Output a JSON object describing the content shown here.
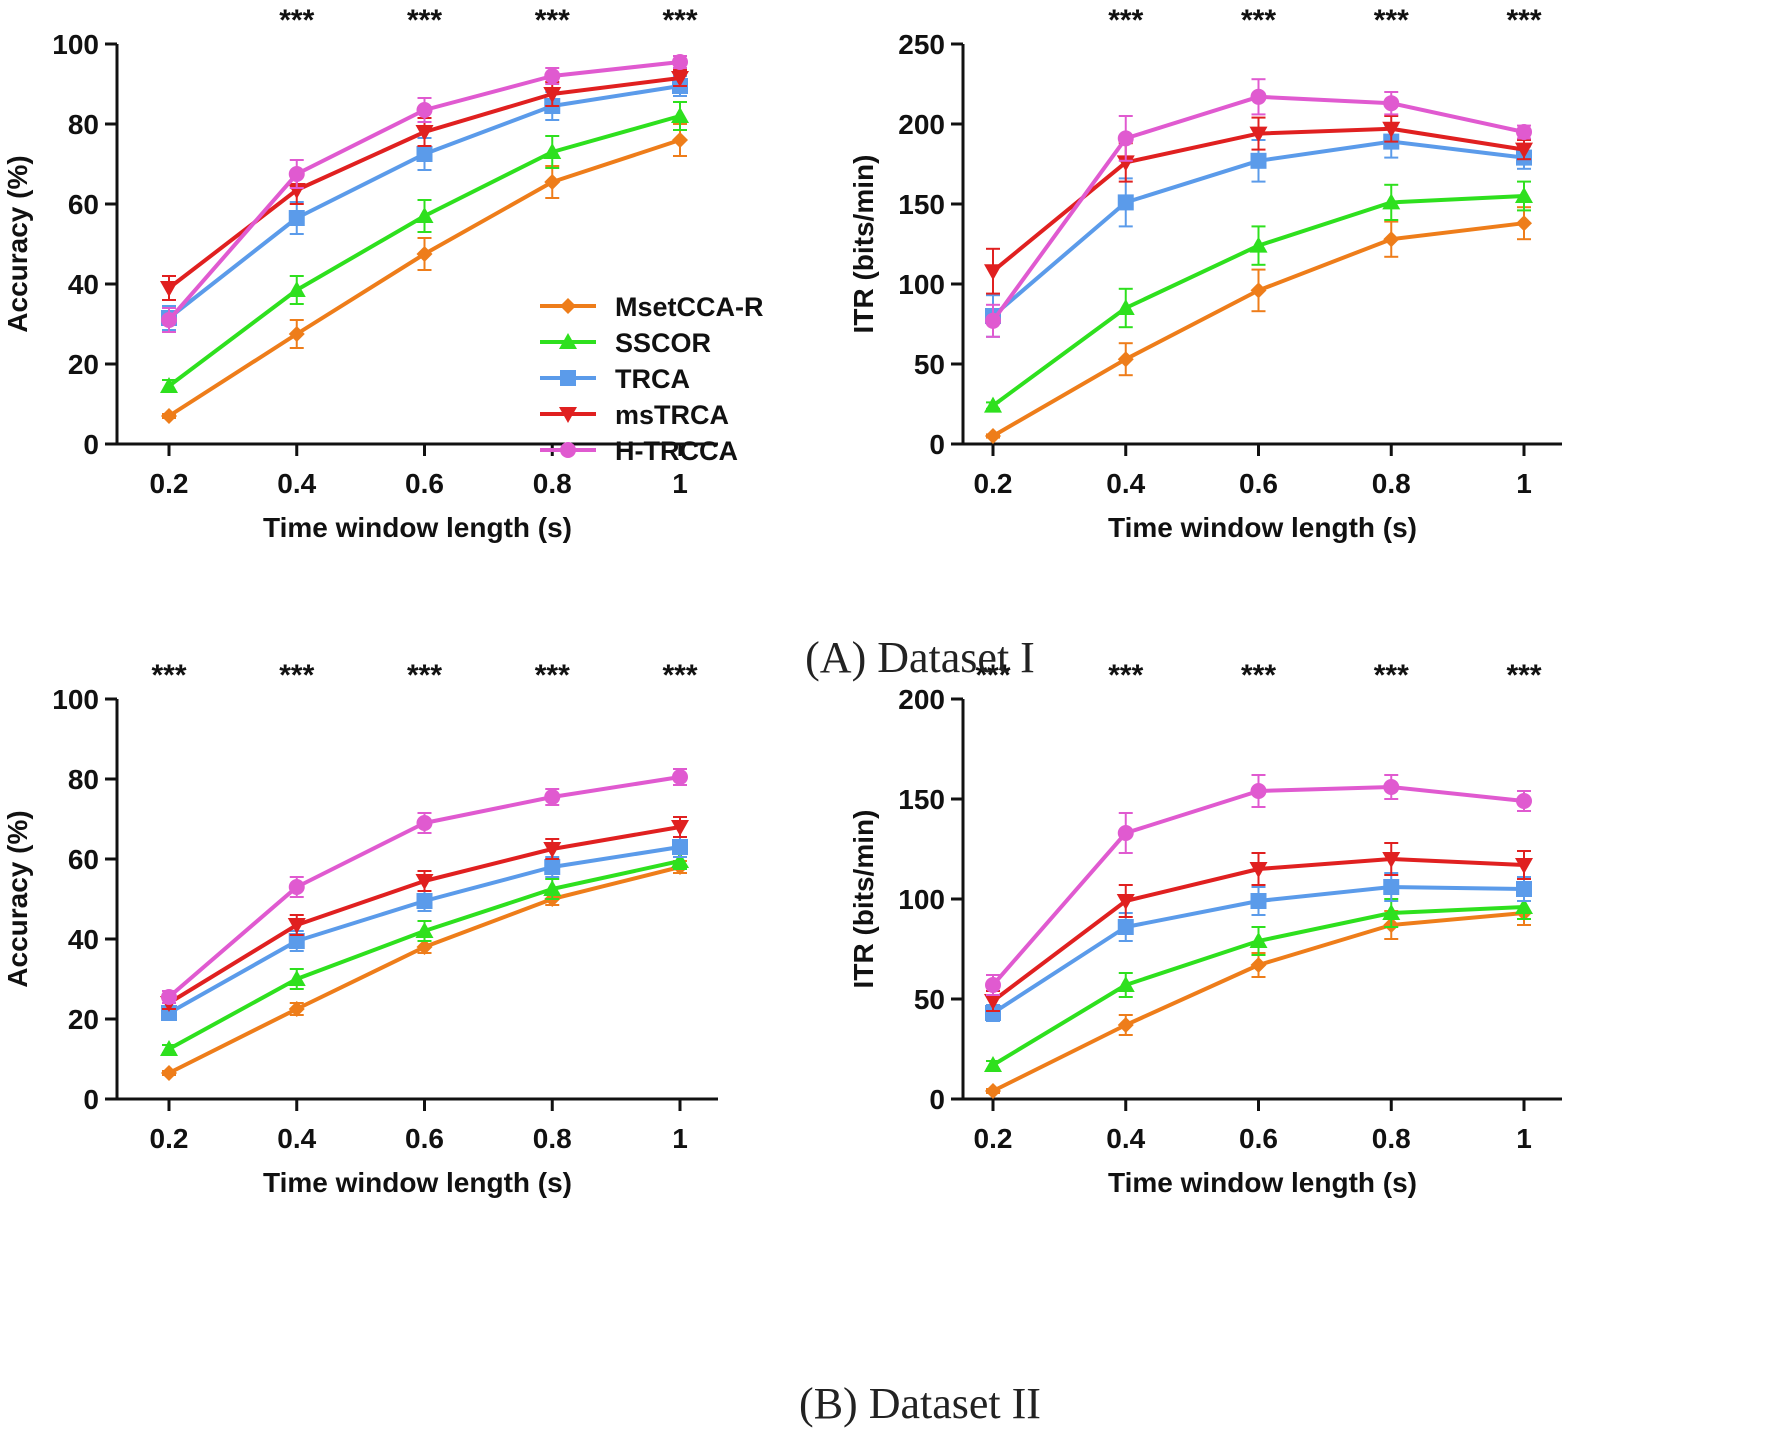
{
  "figure": {
    "captions": [
      "(A) Dataset I",
      "(B) Dataset II"
    ]
  },
  "legend": {
    "placement": "inside-lower-right of first chart",
    "entries": [
      {
        "name": "MsetCCA-R",
        "color": "#ee7d1a",
        "marker": "diamond"
      },
      {
        "name": "SSCOR",
        "color": "#2ee01e",
        "marker": "triangle-up"
      },
      {
        "name": "TRCA",
        "color": "#5b9bea",
        "marker": "square"
      },
      {
        "name": "msTRCA",
        "color": "#e02020",
        "marker": "triangle-down"
      },
      {
        "name": "H-TRCCA",
        "color": "#e05ad0",
        "marker": "circle"
      }
    ]
  },
  "chart_data": [
    {
      "type": "line",
      "panel": "(A) Dataset I",
      "xlabel": "Time window length (s)",
      "ylabel": "Accuracy (%)",
      "x": [
        0.2,
        0.4,
        0.6,
        0.8,
        1.0
      ],
      "x_tick_labels": [
        "0.2",
        "0.4",
        "0.6",
        "0.8",
        "1"
      ],
      "ylim": [
        0,
        100
      ],
      "y_ticks": [
        0,
        20,
        40,
        60,
        80,
        100
      ],
      "significance": [
        "",
        "***",
        "***",
        "***",
        "***"
      ],
      "series": [
        {
          "name": "MsetCCA-R",
          "color": "#ee7d1a",
          "marker": "diamond",
          "values": [
            7,
            27.5,
            47.5,
            65.5,
            76
          ],
          "errors": [
            0.5,
            3.5,
            4,
            4,
            4
          ]
        },
        {
          "name": "SSCOR",
          "color": "#2ee01e",
          "marker": "triangle-up",
          "values": [
            14.5,
            38.5,
            57,
            73,
            82
          ],
          "errors": [
            1.5,
            3.5,
            4,
            4,
            3.5
          ]
        },
        {
          "name": "TRCA",
          "color": "#5b9bea",
          "marker": "square",
          "values": [
            31.5,
            56.5,
            72.5,
            84.5,
            89.5
          ],
          "errors": [
            3,
            4,
            4,
            3.5,
            2.5
          ]
        },
        {
          "name": "msTRCA",
          "color": "#e02020",
          "marker": "triangle-down",
          "values": [
            39,
            63.5,
            78,
            87.5,
            91.5
          ],
          "errors": [
            3,
            3.5,
            3.5,
            3,
            2
          ]
        },
        {
          "name": "H-TRCCA",
          "color": "#e05ad0",
          "marker": "circle",
          "values": [
            31,
            67.5,
            83.5,
            92,
            95.5
          ],
          "errors": [
            3,
            3.5,
            3,
            2,
            1.5
          ]
        }
      ]
    },
    {
      "type": "line",
      "panel": "(A) Dataset I",
      "xlabel": "Time window length (s)",
      "ylabel": "ITR (bits/min)",
      "x": [
        0.2,
        0.4,
        0.6,
        0.8,
        1.0
      ],
      "x_tick_labels": [
        "0.2",
        "0.4",
        "0.6",
        "0.8",
        "1"
      ],
      "ylim": [
        0,
        250
      ],
      "y_ticks": [
        0,
        50,
        100,
        150,
        200,
        250
      ],
      "significance": [
        "",
        "***",
        "***",
        "***",
        "***"
      ],
      "series": [
        {
          "name": "MsetCCA-R",
          "color": "#ee7d1a",
          "marker": "diamond",
          "values": [
            5,
            53,
            96,
            128,
            138
          ],
          "errors": [
            1,
            10,
            13,
            11,
            10
          ]
        },
        {
          "name": "SSCOR",
          "color": "#2ee01e",
          "marker": "triangle-up",
          "values": [
            24,
            85,
            124,
            151,
            155
          ],
          "errors": [
            2,
            12,
            12,
            11,
            9
          ]
        },
        {
          "name": "TRCA",
          "color": "#5b9bea",
          "marker": "square",
          "values": [
            80,
            151,
            177,
            189,
            179
          ],
          "errors": [
            13,
            15,
            13,
            10,
            7
          ]
        },
        {
          "name": "msTRCA",
          "color": "#e02020",
          "marker": "triangle-down",
          "values": [
            108,
            176,
            194,
            197,
            184
          ],
          "errors": [
            14,
            12,
            10,
            8,
            6
          ]
        },
        {
          "name": "H-TRCCA",
          "color": "#e05ad0",
          "marker": "circle",
          "values": [
            77,
            191,
            217,
            213,
            195
          ],
          "errors": [
            10,
            14,
            11,
            7,
            4
          ]
        }
      ]
    },
    {
      "type": "line",
      "panel": "(B) Dataset II",
      "xlabel": "Time window length (s)",
      "ylabel": "Accuracy (%)",
      "x": [
        0.2,
        0.4,
        0.6,
        0.8,
        1.0
      ],
      "x_tick_labels": [
        "0.2",
        "0.4",
        "0.6",
        "0.8",
        "1"
      ],
      "ylim": [
        0,
        100
      ],
      "y_ticks": [
        0,
        20,
        40,
        60,
        80,
        100
      ],
      "significance": [
        "***",
        "***",
        "***",
        "***",
        "***"
      ],
      "series": [
        {
          "name": "MsetCCA-R",
          "color": "#ee7d1a",
          "marker": "diamond",
          "values": [
            6.5,
            22.5,
            38,
            50,
            58
          ],
          "errors": [
            0.5,
            1.5,
            1.5,
            1.5,
            1.5
          ]
        },
        {
          "name": "SSCOR",
          "color": "#2ee01e",
          "marker": "triangle-up",
          "values": [
            12.5,
            30,
            42,
            52.5,
            59.5
          ],
          "errors": [
            1,
            2.5,
            2.5,
            2.5,
            2
          ]
        },
        {
          "name": "TRCA",
          "color": "#5b9bea",
          "marker": "square",
          "values": [
            21.5,
            39.5,
            49.5,
            58,
            63
          ],
          "errors": [
            1.5,
            2.5,
            2.5,
            2.5,
            2.5
          ]
        },
        {
          "name": "msTRCA",
          "color": "#e02020",
          "marker": "triangle-down",
          "values": [
            24,
            43.5,
            54.5,
            62.5,
            68
          ],
          "errors": [
            1.5,
            2.5,
            2.5,
            2.5,
            2.5
          ]
        },
        {
          "name": "H-TRCCA",
          "color": "#e05ad0",
          "marker": "circle",
          "values": [
            25.5,
            53,
            69,
            75.5,
            80.5
          ],
          "errors": [
            1.5,
            2.5,
            2.5,
            2,
            2
          ]
        }
      ]
    },
    {
      "type": "line",
      "panel": "(B) Dataset II",
      "xlabel": "Time window length (s)",
      "ylabel": "ITR (bits/min)",
      "x": [
        0.2,
        0.4,
        0.6,
        0.8,
        1.0
      ],
      "x_tick_labels": [
        "0.2",
        "0.4",
        "0.6",
        "0.8",
        "1"
      ],
      "ylim": [
        0,
        200
      ],
      "y_ticks": [
        0,
        50,
        100,
        150,
        200
      ],
      "significance": [
        "***",
        "***",
        "***",
        "***",
        "***"
      ],
      "series": [
        {
          "name": "MsetCCA-R",
          "color": "#ee7d1a",
          "marker": "diamond",
          "values": [
            4,
            37,
            67,
            87,
            93
          ],
          "errors": [
            1,
            5,
            6,
            7,
            6
          ]
        },
        {
          "name": "SSCOR",
          "color": "#2ee01e",
          "marker": "triangle-up",
          "values": [
            17,
            57,
            79,
            93,
            96
          ],
          "errors": [
            2,
            6,
            7,
            7,
            6
          ]
        },
        {
          "name": "TRCA",
          "color": "#5b9bea",
          "marker": "square",
          "values": [
            43,
            86,
            99,
            106,
            105
          ],
          "errors": [
            4,
            7,
            7,
            7,
            6
          ]
        },
        {
          "name": "msTRCA",
          "color": "#e02020",
          "marker": "triangle-down",
          "values": [
            49,
            99,
            115,
            120,
            117
          ],
          "errors": [
            5,
            8,
            8,
            8,
            7
          ]
        },
        {
          "name": "H-TRCCA",
          "color": "#e05ad0",
          "marker": "circle",
          "values": [
            57,
            133,
            154,
            156,
            149
          ],
          "errors": [
            5,
            10,
            8,
            6,
            5
          ]
        }
      ]
    }
  ]
}
